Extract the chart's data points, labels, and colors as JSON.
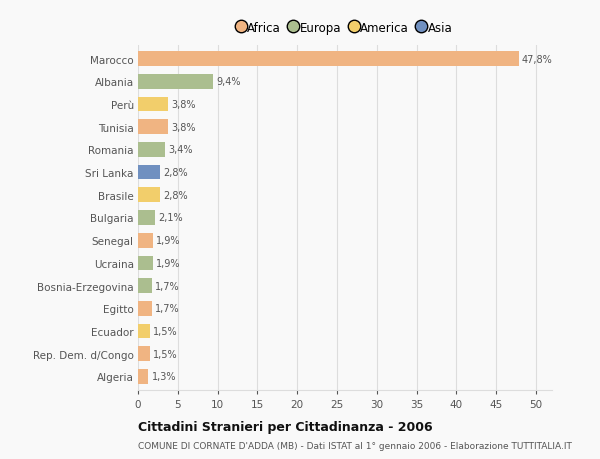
{
  "countries": [
    "Marocco",
    "Albania",
    "Perù",
    "Tunisia",
    "Romania",
    "Sri Lanka",
    "Brasile",
    "Bulgaria",
    "Senegal",
    "Ucraina",
    "Bosnia-Erzegovina",
    "Egitto",
    "Ecuador",
    "Rep. Dem. d/Congo",
    "Algeria"
  ],
  "values": [
    47.8,
    9.4,
    3.8,
    3.8,
    3.4,
    2.8,
    2.8,
    2.1,
    1.9,
    1.9,
    1.7,
    1.7,
    1.5,
    1.5,
    1.3
  ],
  "labels": [
    "47,8%",
    "9,4%",
    "3,8%",
    "3,8%",
    "3,4%",
    "2,8%",
    "2,8%",
    "2,1%",
    "1,9%",
    "1,9%",
    "1,7%",
    "1,7%",
    "1,5%",
    "1,5%",
    "1,3%"
  ],
  "continents": [
    "Africa",
    "Europa",
    "America",
    "Africa",
    "Europa",
    "Asia",
    "America",
    "Europa",
    "Africa",
    "Europa",
    "Europa",
    "Africa",
    "America",
    "Africa",
    "Africa"
  ],
  "continent_colors": {
    "Africa": "#F0B482",
    "Europa": "#ABBE8F",
    "America": "#F2CE6B",
    "Asia": "#7090C0"
  },
  "legend_items": [
    "Africa",
    "Europa",
    "America",
    "Asia"
  ],
  "legend_colors": [
    "#F0B482",
    "#ABBE8F",
    "#F2CE6B",
    "#7090C0"
  ],
  "title": "Cittadini Stranieri per Cittadinanza - 2006",
  "subtitle": "COMUNE DI CORNATE D'ADDA (MB) - Dati ISTAT al 1° gennaio 2006 - Elaborazione TUTTITALIA.IT",
  "xlim": [
    0,
    52
  ],
  "xticks": [
    0,
    5,
    10,
    15,
    20,
    25,
    30,
    35,
    40,
    45,
    50
  ],
  "background_color": "#f9f9f9",
  "grid_color": "#dddddd",
  "bar_height": 0.65
}
